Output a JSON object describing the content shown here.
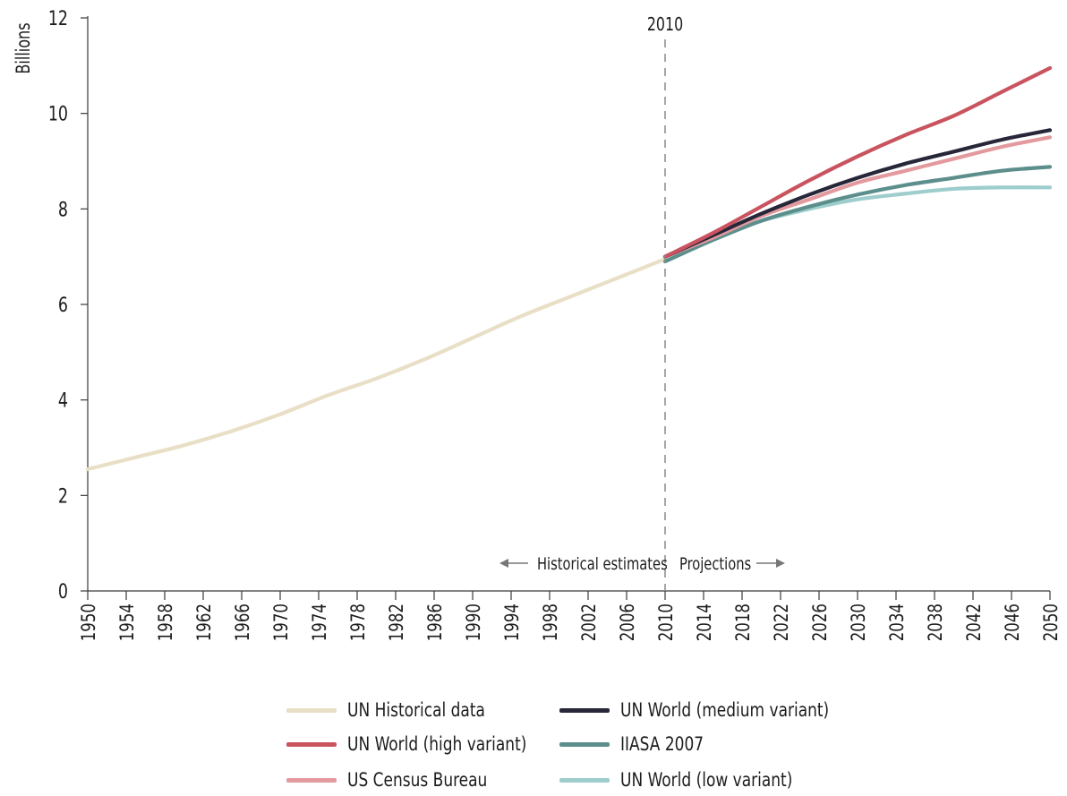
{
  "chart_data": {
    "type": "line",
    "ylabel": "Billions",
    "xlabel": "",
    "ylim": [
      0,
      12
    ],
    "yticks": [
      "0",
      "2",
      "4",
      "6",
      "8",
      "10",
      "12"
    ],
    "xlim": [
      1950,
      2050
    ],
    "xticks": [
      "1950",
      "1954",
      "1958",
      "1962",
      "1966",
      "1970",
      "1974",
      "1978",
      "1982",
      "1986",
      "1990",
      "1994",
      "1998",
      "2002",
      "2006",
      "2010",
      "2014",
      "2018",
      "2022",
      "2026",
      "2030",
      "2034",
      "2038",
      "2042",
      "2046",
      "2050"
    ],
    "reference_line": {
      "x": 2010,
      "label": "2010"
    },
    "annotations": {
      "left": "Historical estimates",
      "right": "Projections"
    },
    "grid": false,
    "legend_position": "bottom",
    "series": [
      {
        "name": "UN Historical data",
        "color": "#e8dfc6",
        "x": [
          1950,
          1955,
          1960,
          1965,
          1970,
          1975,
          1980,
          1985,
          1990,
          1995,
          2000,
          2005,
          2010
        ],
        "y": [
          2.55,
          2.8,
          3.05,
          3.35,
          3.7,
          4.1,
          4.45,
          4.85,
          5.3,
          5.75,
          6.15,
          6.55,
          6.95
        ]
      },
      {
        "name": "UN World (high variant)",
        "color": "#c9545f",
        "x": [
          2010,
          2015,
          2020,
          2025,
          2030,
          2035,
          2040,
          2045,
          2050
        ],
        "y": [
          7.0,
          7.5,
          8.05,
          8.6,
          9.1,
          9.55,
          9.95,
          10.45,
          10.95
        ]
      },
      {
        "name": "US Census Bureau",
        "color": "#e3999d",
        "x": [
          2010,
          2015,
          2020,
          2025,
          2030,
          2035,
          2040,
          2045,
          2050
        ],
        "y": [
          7.0,
          7.4,
          7.85,
          8.2,
          8.55,
          8.8,
          9.05,
          9.3,
          9.5
        ]
      },
      {
        "name": "UN World (medium variant)",
        "color": "#28273a",
        "x": [
          2010,
          2015,
          2020,
          2025,
          2030,
          2035,
          2040,
          2045,
          2050
        ],
        "y": [
          7.0,
          7.45,
          7.9,
          8.3,
          8.65,
          8.95,
          9.2,
          9.45,
          9.65
        ]
      },
      {
        "name": "IIASA 2007",
        "color": "#5c8e8c",
        "x": [
          2010,
          2015,
          2020,
          2025,
          2030,
          2035,
          2040,
          2045,
          2050
        ],
        "y": [
          6.9,
          7.35,
          7.75,
          8.05,
          8.3,
          8.5,
          8.65,
          8.8,
          8.88
        ]
      },
      {
        "name": "UN World (low variant)",
        "color": "#9dcdcc",
        "x": [
          2010,
          2015,
          2020,
          2025,
          2030,
          2035,
          2040,
          2045,
          2050
        ],
        "y": [
          7.0,
          7.4,
          7.75,
          8.0,
          8.2,
          8.32,
          8.42,
          8.45,
          8.45
        ]
      }
    ]
  },
  "legend": [
    {
      "label": "UN Historical data",
      "color": "#e8dfc6"
    },
    {
      "label": "UN World (high variant)",
      "color": "#c9545f"
    },
    {
      "label": "US Census Bureau",
      "color": "#e3999d"
    },
    {
      "label": "UN World (medium variant)",
      "color": "#28273a"
    },
    {
      "label": "IIASA 2007",
      "color": "#5c8e8c"
    },
    {
      "label": "UN World (low variant)",
      "color": "#9dcdcc"
    }
  ]
}
